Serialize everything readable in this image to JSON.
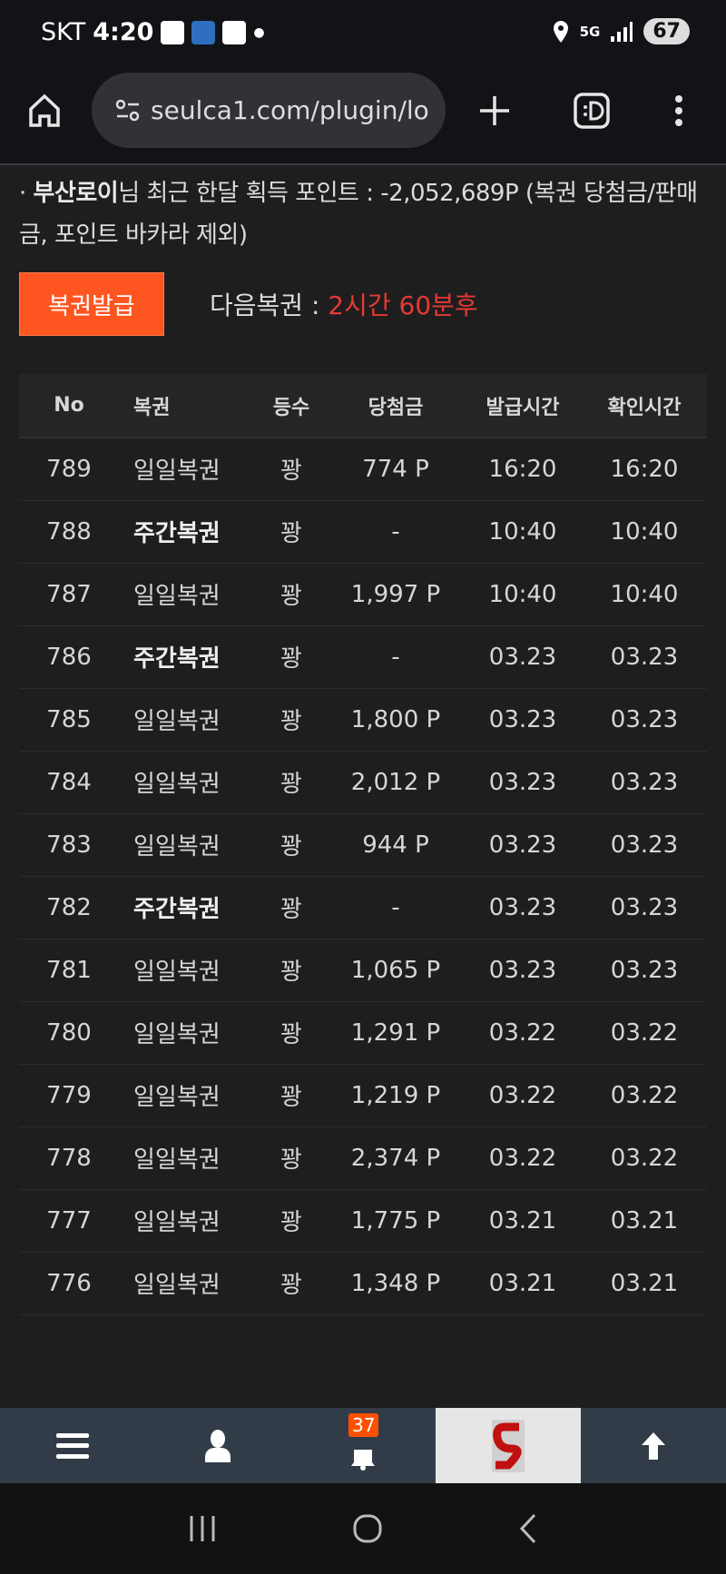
{
  "status": {
    "carrier": "SKT",
    "time": "4:20",
    "network": "5G",
    "battery": "67"
  },
  "browser": {
    "url": "seulca1.com/plugin/lo"
  },
  "info": {
    "bullet": "·",
    "username": "부산로이",
    "text": "님 최근 한달 획득 포인트 : -2,052,689P (복권 당첨금/판매금, 포인트 바카라 제외)"
  },
  "issue_button": "복권발급",
  "next": {
    "label": "다음복권 : ",
    "value": "2시간 60분후",
    "value_color": "#e53935"
  },
  "table": {
    "headers": [
      "No",
      "복권",
      "등수",
      "당첨금",
      "발급시간",
      "확인시간"
    ],
    "rows": [
      [
        "789",
        "일일복권",
        "꽝",
        "774 P",
        "16:20",
        "16:20"
      ],
      [
        "788",
        "주간복권",
        "꽝",
        "-",
        "10:40",
        "10:40"
      ],
      [
        "787",
        "일일복권",
        "꽝",
        "1,997 P",
        "10:40",
        "10:40"
      ],
      [
        "786",
        "주간복권",
        "꽝",
        "-",
        "03.23",
        "03.23"
      ],
      [
        "785",
        "일일복권",
        "꽝",
        "1,800 P",
        "03.23",
        "03.23"
      ],
      [
        "784",
        "일일복권",
        "꽝",
        "2,012 P",
        "03.23",
        "03.23"
      ],
      [
        "783",
        "일일복권",
        "꽝",
        "944 P",
        "03.23",
        "03.23"
      ],
      [
        "782",
        "주간복권",
        "꽝",
        "-",
        "03.23",
        "03.23"
      ],
      [
        "781",
        "일일복권",
        "꽝",
        "1,065 P",
        "03.23",
        "03.23"
      ],
      [
        "780",
        "일일복권",
        "꽝",
        "1,291 P",
        "03.22",
        "03.22"
      ],
      [
        "779",
        "일일복권",
        "꽝",
        "1,219 P",
        "03.22",
        "03.22"
      ],
      [
        "778",
        "일일복권",
        "꽝",
        "2,374 P",
        "03.22",
        "03.22"
      ],
      [
        "777",
        "일일복권",
        "꽝",
        "1,775 P",
        "03.21",
        "03.21"
      ],
      [
        "776",
        "일일복권",
        "꽝",
        "1,348 P",
        "03.21",
        "03.21"
      ]
    ]
  },
  "bottom_nav": {
    "notification_count": "37",
    "accent": "#fe5100"
  }
}
